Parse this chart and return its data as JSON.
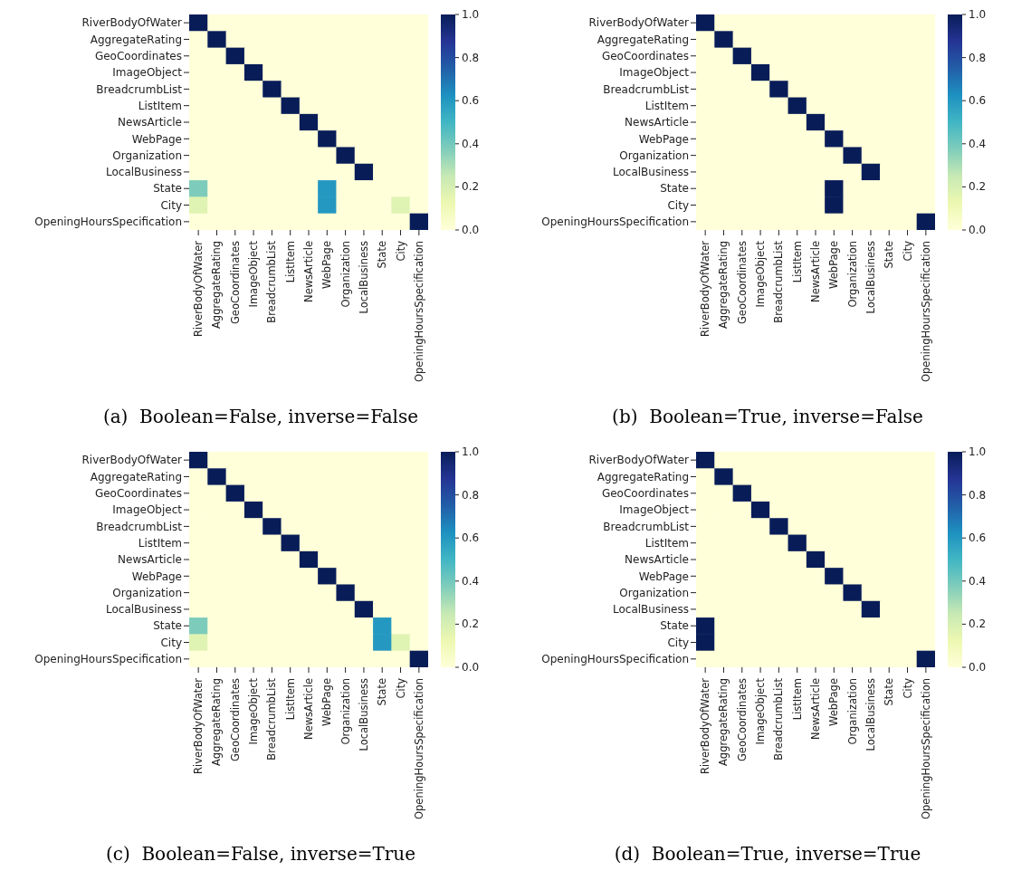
{
  "chart_data": [
    {
      "type": "heatmap",
      "title": "(a)  Boolean=False, inverse=False",
      "categories": [
        "RiverBodyOfWater",
        "AggregateRating",
        "GeoCoordinates",
        "ImageObject",
        "BreadcrumbList",
        "ListItem",
        "NewsArticle",
        "WebPage",
        "Organization",
        "LocalBusiness",
        "State",
        "City",
        "OpeningHoursSpecification"
      ],
      "y_categories": [
        "RiverBodyOfWater",
        "AggregateRating",
        "GeoCoordinates",
        "ImageObject",
        "BreadcrumbList",
        "ListItem",
        "NewsArticle",
        "WebPage",
        "Organization",
        "LocalBusiness",
        "State",
        "City",
        "OpeningHoursSpecification"
      ],
      "clim": [
        0,
        1
      ],
      "cticks": [
        {
          "value": 0,
          "label": "0.0"
        },
        {
          "value": 0.2,
          "label": "0.2"
        },
        {
          "value": 0.4,
          "label": "0.4"
        },
        {
          "value": 0.6,
          "label": "0.6"
        },
        {
          "value": 0.8,
          "label": "0.8"
        },
        {
          "value": 1,
          "label": "1.0"
        }
      ],
      "cells": [
        [
          1,
          0,
          0,
          0,
          0,
          0,
          0,
          0,
          0,
          0,
          0,
          0,
          0
        ],
        [
          0,
          1,
          0,
          0,
          0,
          0,
          0,
          0,
          0,
          0,
          0,
          0,
          0
        ],
        [
          0,
          0,
          1,
          0,
          0,
          0,
          0,
          0,
          0,
          0,
          0,
          0,
          0
        ],
        [
          0,
          0,
          0,
          1,
          0,
          0,
          0,
          0,
          0,
          0,
          0,
          0,
          0
        ],
        [
          0,
          0,
          0,
          0,
          1,
          0,
          0,
          0,
          0,
          0,
          0,
          0,
          0
        ],
        [
          0,
          0,
          0,
          0,
          0,
          1,
          0,
          0,
          0,
          0,
          0,
          0,
          0
        ],
        [
          0,
          0,
          0,
          0,
          0,
          0,
          1,
          0,
          0,
          0,
          0,
          0,
          0
        ],
        [
          0,
          0,
          0,
          0,
          0,
          0,
          0,
          1,
          0,
          0,
          0,
          0,
          0
        ],
        [
          0,
          0,
          0,
          0,
          0,
          0,
          0,
          0,
          1,
          0,
          0,
          0,
          0
        ],
        [
          0,
          0,
          0,
          0,
          0,
          0,
          0,
          0,
          0,
          1,
          0,
          0,
          0
        ],
        [
          0.38,
          0,
          0,
          0,
          0,
          0,
          0,
          0.6,
          0,
          0,
          0,
          0,
          0
        ],
        [
          0.17,
          0,
          0,
          0,
          0,
          0,
          0,
          0.6,
          0,
          0,
          0,
          0.17,
          0
        ],
        [
          0,
          0,
          0,
          0,
          0,
          0,
          0,
          0,
          0,
          0,
          0,
          0,
          1
        ]
      ]
    },
    {
      "type": "heatmap",
      "title": "(b)  Boolean=True, inverse=False",
      "categories": [
        "RiverBodyOfWater",
        "AggregateRating",
        "GeoCoordinates",
        "ImageObject",
        "BreadcrumbList",
        "ListItem",
        "NewsArticle",
        "WebPage",
        "Organization",
        "LocalBusiness",
        "State",
        "City",
        "OpeningHoursSpecification"
      ],
      "y_categories": [
        "RiverBodyOfWater",
        "AggregateRating",
        "GeoCoordinates",
        "ImageObject",
        "BreadcrumbList",
        "ListItem",
        "NewsArticle",
        "WebPage",
        "Organization",
        "LocalBusiness",
        "State",
        "City",
        "OpeningHoursSpecification"
      ],
      "clim": [
        0,
        1
      ],
      "cticks": [
        {
          "value": 0,
          "label": "0.0"
        },
        {
          "value": 0.2,
          "label": "0.2"
        },
        {
          "value": 0.4,
          "label": "0.4"
        },
        {
          "value": 0.6,
          "label": "0.6"
        },
        {
          "value": 0.8,
          "label": "0.8"
        },
        {
          "value": 1,
          "label": "1.0"
        }
      ],
      "cells": [
        [
          1,
          0,
          0,
          0,
          0,
          0,
          0,
          0,
          0,
          0,
          0,
          0,
          0
        ],
        [
          0,
          1,
          0,
          0,
          0,
          0,
          0,
          0,
          0,
          0,
          0,
          0,
          0
        ],
        [
          0,
          0,
          1,
          0,
          0,
          0,
          0,
          0,
          0,
          0,
          0,
          0,
          0
        ],
        [
          0,
          0,
          0,
          1,
          0,
          0,
          0,
          0,
          0,
          0,
          0,
          0,
          0
        ],
        [
          0,
          0,
          0,
          0,
          1,
          0,
          0,
          0,
          0,
          0,
          0,
          0,
          0
        ],
        [
          0,
          0,
          0,
          0,
          0,
          1,
          0,
          0,
          0,
          0,
          0,
          0,
          0
        ],
        [
          0,
          0,
          0,
          0,
          0,
          0,
          1,
          0,
          0,
          0,
          0,
          0,
          0
        ],
        [
          0,
          0,
          0,
          0,
          0,
          0,
          0,
          1,
          0,
          0,
          0,
          0,
          0
        ],
        [
          0,
          0,
          0,
          0,
          0,
          0,
          0,
          0,
          1,
          0,
          0,
          0,
          0
        ],
        [
          0,
          0,
          0,
          0,
          0,
          0,
          0,
          0,
          0,
          1,
          0,
          0,
          0
        ],
        [
          0,
          0,
          0,
          0,
          0,
          0,
          0,
          1,
          0,
          0,
          0,
          0,
          0
        ],
        [
          0,
          0,
          0,
          0,
          0,
          0,
          0,
          1,
          0,
          0,
          0,
          0,
          0
        ],
        [
          0,
          0,
          0,
          0,
          0,
          0,
          0,
          0,
          0,
          0,
          0,
          0,
          1
        ]
      ]
    },
    {
      "type": "heatmap",
      "title": "(c)  Boolean=False, inverse=True",
      "categories": [
        "RiverBodyOfWater",
        "AggregateRating",
        "GeoCoordinates",
        "ImageObject",
        "BreadcrumbList",
        "ListItem",
        "NewsArticle",
        "WebPage",
        "Organization",
        "LocalBusiness",
        "State",
        "City",
        "OpeningHoursSpecification"
      ],
      "y_categories": [
        "RiverBodyOfWater",
        "AggregateRating",
        "GeoCoordinates",
        "ImageObject",
        "BreadcrumbList",
        "ListItem",
        "NewsArticle",
        "WebPage",
        "Organization",
        "LocalBusiness",
        "State",
        "City",
        "OpeningHoursSpecification"
      ],
      "clim": [
        0,
        1
      ],
      "cticks": [
        {
          "value": 0,
          "label": "0.0"
        },
        {
          "value": 0.2,
          "label": "0.2"
        },
        {
          "value": 0.4,
          "label": "0.4"
        },
        {
          "value": 0.6,
          "label": "0.6"
        },
        {
          "value": 0.8,
          "label": "0.8"
        },
        {
          "value": 1,
          "label": "1.0"
        }
      ],
      "cells": [
        [
          1,
          0,
          0,
          0,
          0,
          0,
          0,
          0,
          0,
          0,
          0,
          0,
          0
        ],
        [
          0,
          1,
          0,
          0,
          0,
          0,
          0,
          0,
          0,
          0,
          0,
          0,
          0
        ],
        [
          0,
          0,
          1,
          0,
          0,
          0,
          0,
          0,
          0,
          0,
          0,
          0,
          0
        ],
        [
          0,
          0,
          0,
          1,
          0,
          0,
          0,
          0,
          0,
          0,
          0,
          0,
          0
        ],
        [
          0,
          0,
          0,
          0,
          1,
          0,
          0,
          0,
          0,
          0,
          0,
          0,
          0
        ],
        [
          0,
          0,
          0,
          0,
          0,
          1,
          0,
          0,
          0,
          0,
          0,
          0,
          0
        ],
        [
          0,
          0,
          0,
          0,
          0,
          0,
          1,
          0,
          0,
          0,
          0,
          0,
          0
        ],
        [
          0,
          0,
          0,
          0,
          0,
          0,
          0,
          1,
          0,
          0,
          0,
          0,
          0
        ],
        [
          0,
          0,
          0,
          0,
          0,
          0,
          0,
          0,
          1,
          0,
          0,
          0,
          0
        ],
        [
          0,
          0,
          0,
          0,
          0,
          0,
          0,
          0,
          0,
          1,
          0,
          0,
          0
        ],
        [
          0.38,
          0,
          0,
          0,
          0,
          0,
          0,
          0,
          0,
          0,
          0.6,
          0,
          0
        ],
        [
          0.17,
          0,
          0,
          0,
          0,
          0,
          0,
          0,
          0,
          0,
          0.6,
          0.17,
          0
        ],
        [
          0,
          0,
          0,
          0,
          0,
          0,
          0,
          0,
          0,
          0,
          0,
          0,
          1
        ]
      ]
    },
    {
      "type": "heatmap",
      "title": "(d)  Boolean=True, inverse=True",
      "categories": [
        "RiverBodyOfWater",
        "AggregateRating",
        "GeoCoordinates",
        "ImageObject",
        "BreadcrumbList",
        "ListItem",
        "NewsArticle",
        "WebPage",
        "Organization",
        "LocalBusiness",
        "State",
        "City",
        "OpeningHoursSpecification"
      ],
      "y_categories": [
        "RiverBodyOfWater",
        "AggregateRating",
        "GeoCoordinates",
        "ImageObject",
        "BreadcrumbList",
        "ListItem",
        "NewsArticle",
        "WebPage",
        "Organization",
        "LocalBusiness",
        "State",
        "City",
        "OpeningHoursSpecification"
      ],
      "clim": [
        0,
        1
      ],
      "cticks": [
        {
          "value": 0,
          "label": "0.0"
        },
        {
          "value": 0.2,
          "label": "0.2"
        },
        {
          "value": 0.4,
          "label": "0.4"
        },
        {
          "value": 0.6,
          "label": "0.6"
        },
        {
          "value": 0.8,
          "label": "0.8"
        },
        {
          "value": 1,
          "label": "1.0"
        }
      ],
      "cells": [
        [
          1,
          0,
          0,
          0,
          0,
          0,
          0,
          0,
          0,
          0,
          0,
          0,
          0
        ],
        [
          0,
          1,
          0,
          0,
          0,
          0,
          0,
          0,
          0,
          0,
          0,
          0,
          0
        ],
        [
          0,
          0,
          1,
          0,
          0,
          0,
          0,
          0,
          0,
          0,
          0,
          0,
          0
        ],
        [
          0,
          0,
          0,
          1,
          0,
          0,
          0,
          0,
          0,
          0,
          0,
          0,
          0
        ],
        [
          0,
          0,
          0,
          0,
          1,
          0,
          0,
          0,
          0,
          0,
          0,
          0,
          0
        ],
        [
          0,
          0,
          0,
          0,
          0,
          1,
          0,
          0,
          0,
          0,
          0,
          0,
          0
        ],
        [
          0,
          0,
          0,
          0,
          0,
          0,
          1,
          0,
          0,
          0,
          0,
          0,
          0
        ],
        [
          0,
          0,
          0,
          0,
          0,
          0,
          0,
          1,
          0,
          0,
          0,
          0,
          0
        ],
        [
          0,
          0,
          0,
          0,
          0,
          0,
          0,
          0,
          1,
          0,
          0,
          0,
          0
        ],
        [
          0,
          0,
          0,
          0,
          0,
          0,
          0,
          0,
          0,
          1,
          0,
          0,
          0
        ],
        [
          1,
          0,
          0,
          0,
          0,
          0,
          0,
          0,
          0,
          0,
          0,
          0,
          0
        ],
        [
          1,
          0,
          0,
          0,
          0,
          0,
          0,
          0,
          0,
          0,
          0,
          0,
          0
        ],
        [
          0,
          0,
          0,
          0,
          0,
          0,
          0,
          0,
          0,
          0,
          0,
          0,
          1
        ]
      ]
    }
  ]
}
